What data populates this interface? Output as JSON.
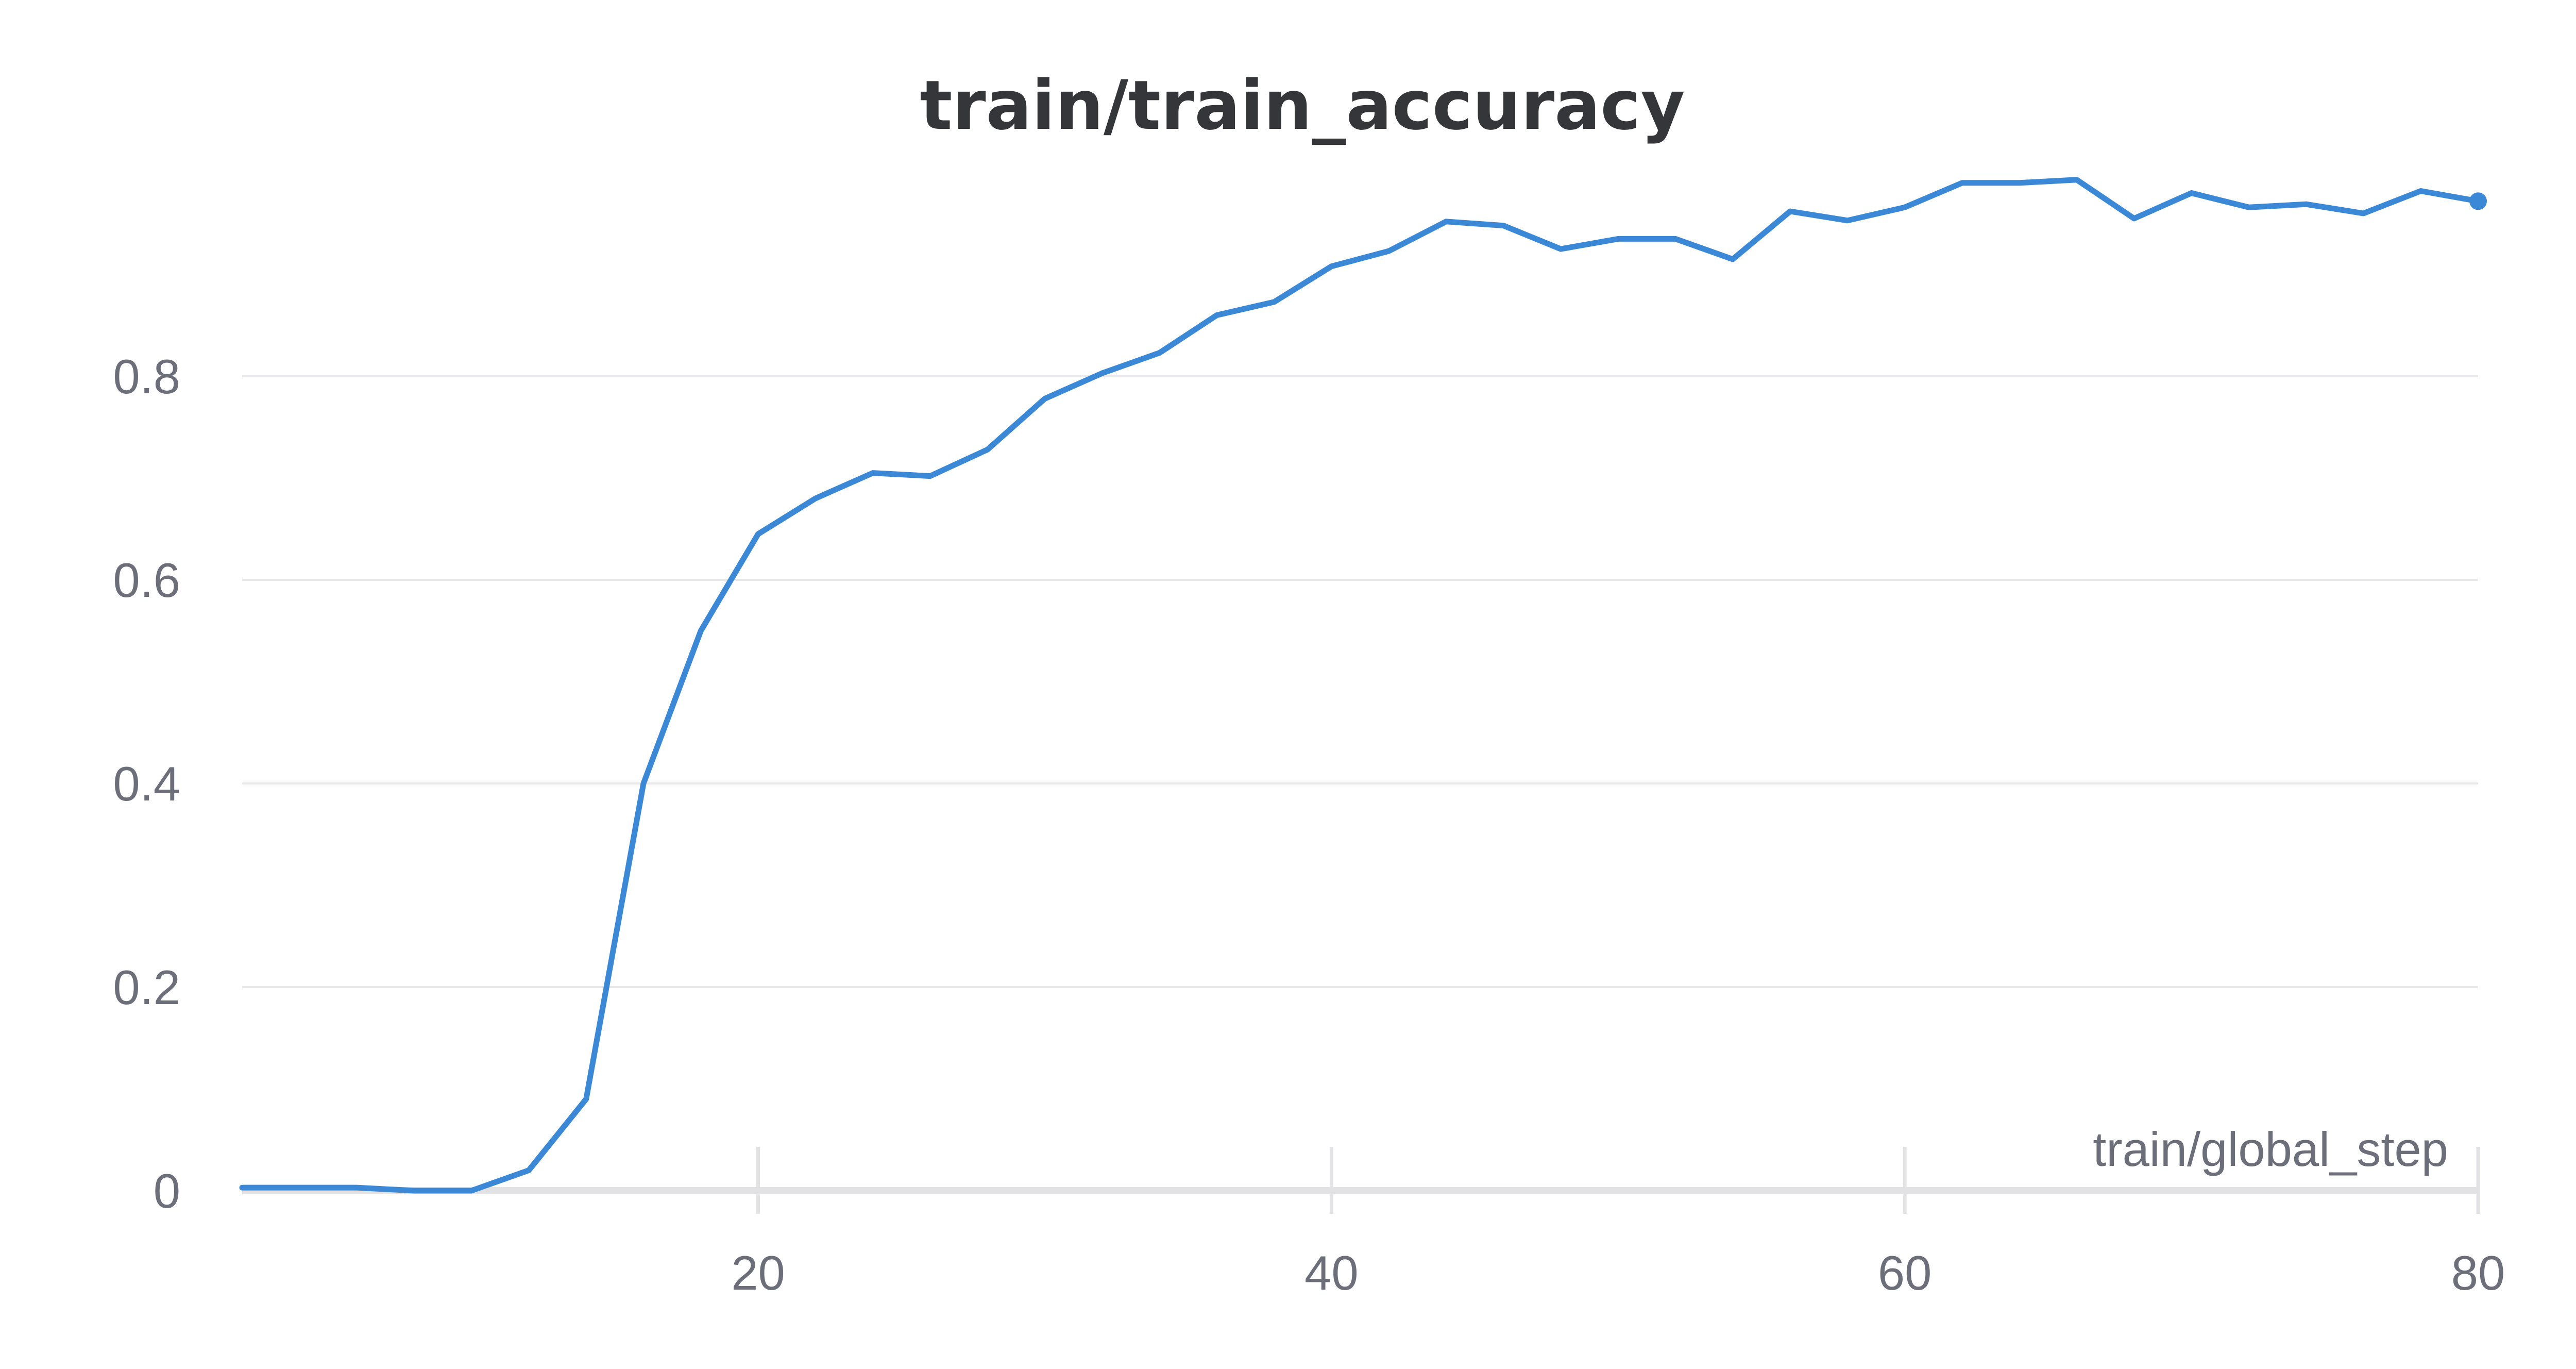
{
  "colors": {
    "series": "#3a88d6",
    "text": "#35363a",
    "tick": "#6c6f79"
  },
  "chart_data": {
    "type": "line",
    "title": "train/train_accuracy",
    "xlabel": "train/global_step",
    "ylabel": "",
    "xlim": [
      2,
      80
    ],
    "ylim": [
      0,
      0.97
    ],
    "grid": true,
    "x_ticks": [
      20,
      40,
      60,
      80
    ],
    "y_ticks": [
      0,
      0.2,
      0.4,
      0.6,
      0.8
    ],
    "x_tick_labels": [
      "20",
      "40",
      "60",
      "80"
    ],
    "y_tick_labels": [
      "0",
      "0.2",
      "0.4",
      "0.6",
      "0.8"
    ],
    "series": [
      {
        "x": [
          2,
          4,
          6,
          8,
          10,
          12,
          14,
          16,
          18,
          20,
          22,
          24,
          26,
          28,
          30,
          32,
          34,
          36,
          38,
          40,
          42,
          44,
          46,
          48,
          50,
          52,
          54,
          56,
          58,
          60,
          62,
          64,
          66,
          68,
          70,
          72,
          74,
          76,
          78,
          80
        ],
        "y": [
          0.003,
          0.003,
          0.003,
          0.0,
          0.0,
          0.02,
          0.09,
          0.4,
          0.55,
          0.645,
          0.68,
          0.705,
          0.702,
          0.728,
          0.778,
          0.803,
          0.823,
          0.86,
          0.873,
          0.908,
          0.923,
          0.952,
          0.948,
          0.925,
          0.935,
          0.935,
          0.915,
          0.962,
          0.953,
          0.966,
          0.99,
          0.99,
          0.993,
          0.955,
          0.98,
          0.966,
          0.969,
          0.96,
          0.982,
          0.972
        ]
      }
    ]
  }
}
